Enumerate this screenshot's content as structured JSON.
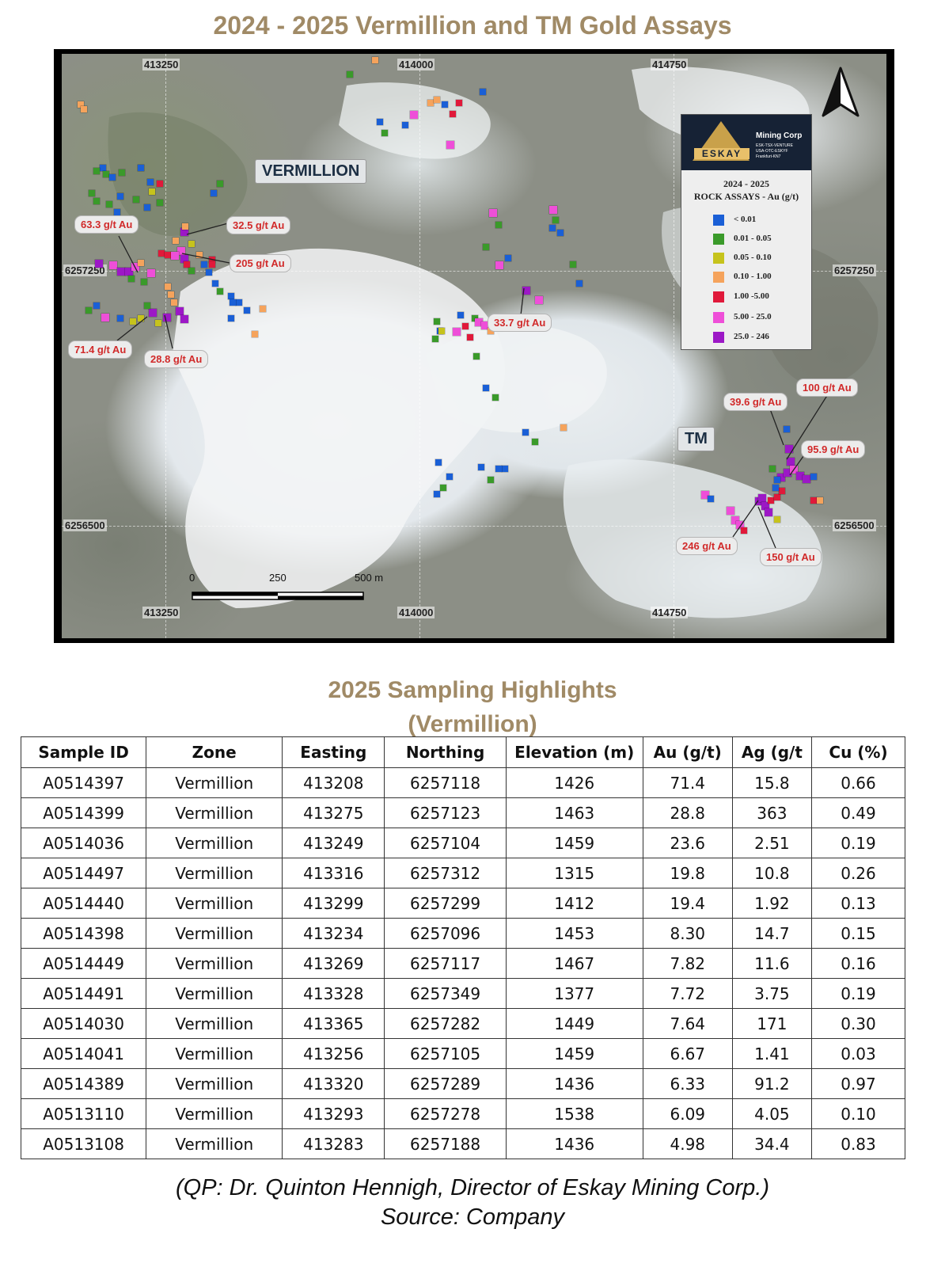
{
  "map": {
    "title": "2024 - 2025 Vermillion and TM Gold Assays",
    "coordinates": {
      "top_left": "413250",
      "top_mid": "414000",
      "top_right": "414750",
      "bottom_left": "413250",
      "bottom_mid": "414000",
      "bottom_right": "414750",
      "left_upper": "6257250",
      "left_lower": "6256500",
      "right_upper": "6257250",
      "right_lower": "6256500"
    },
    "area_labels": {
      "vermillion": "VERMILLION",
      "tm": "TM"
    },
    "callouts": [
      "63.3 g/t Au",
      "32.5 g/t Au",
      "205 g/t Au",
      "71.4 g/t Au",
      "28.8 g/t Au",
      "33.7 g/t Au",
      "39.6 g/t Au",
      "100 g/t Au",
      "95.9 g/t Au",
      "246 g/t Au",
      "150 g/t Au"
    ],
    "scale_bar": {
      "labels": [
        "0",
        "250",
        "500 m"
      ]
    },
    "legend": {
      "logo_word": "ESKAY",
      "logo_company": "Mining Corp",
      "logo_tickers": [
        "ESK-TSX-VENTURE",
        "USA-OTC-ESKYF",
        "Frankfurt-KN7"
      ],
      "title_line1": "2024 - 2025",
      "title_line2": "ROCK ASSAYS  - Au (g/t)",
      "classes": [
        {
          "label": "< 0.01",
          "color": "#1a5fd6"
        },
        {
          "label": "0.01 - 0.05",
          "color": "#3a9a2a"
        },
        {
          "label": "0.05 - 0.10",
          "color": "#c6c31c"
        },
        {
          "label": "0.10 - 1.00",
          "color": "#f5a35c"
        },
        {
          "label": "1.00 -5.00",
          "color": "#e0193a"
        },
        {
          "label": "5.00 - 25.0",
          "color": "#ee4fd8"
        },
        {
          "label": "25.0 - 246",
          "color": "#9c18c6"
        }
      ]
    },
    "north_arrow_icon": "north-arrow-icon"
  },
  "table": {
    "title_line1": "2025 Sampling Highlights",
    "title_line2": "(Vermillion)",
    "headers": [
      "Sample ID",
      "Zone",
      "Easting",
      "Northing",
      "Elevation (m)",
      "Au (g/t)",
      "Ag (g/t",
      "Cu (%)"
    ],
    "rows": [
      [
        "A0514397",
        "Vermillion",
        "413208",
        "6257118",
        "1426",
        "71.4",
        "15.8",
        "0.66"
      ],
      [
        "A0514399",
        "Vermillion",
        "413275",
        "6257123",
        "1463",
        "28.8",
        "363",
        "0.49"
      ],
      [
        "A0514036",
        "Vermillion",
        "413249",
        "6257104",
        "1459",
        "23.6",
        "2.51",
        "0.19"
      ],
      [
        "A0514497",
        "Vermillion",
        "413316",
        "6257312",
        "1315",
        "19.8",
        "10.8",
        "0.26"
      ],
      [
        "A0514440",
        "Vermillion",
        "413299",
        "6257299",
        "1412",
        "19.4",
        "1.92",
        "0.13"
      ],
      [
        "A0514398",
        "Vermillion",
        "413234",
        "6257096",
        "1453",
        "8.30",
        "14.7",
        "0.15"
      ],
      [
        "A0514449",
        "Vermillion",
        "413269",
        "6257117",
        "1467",
        "7.82",
        "11.6",
        "0.16"
      ],
      [
        "A0514491",
        "Vermillion",
        "413328",
        "6257349",
        "1377",
        "7.72",
        "3.75",
        "0.19"
      ],
      [
        "A0514030",
        "Vermillion",
        "413365",
        "6257282",
        "1449",
        "7.64",
        "171",
        "0.30"
      ],
      [
        "A0514041",
        "Vermillion",
        "413256",
        "6257105",
        "1459",
        "6.67",
        "1.41",
        "0.03"
      ],
      [
        "A0514389",
        "Vermillion",
        "413320",
        "6257289",
        "1436",
        "6.33",
        "91.2",
        "0.97"
      ],
      [
        "A0513110",
        "Vermillion",
        "413293",
        "6257278",
        "1538",
        "6.09",
        "4.05",
        "0.10"
      ],
      [
        "A0513108",
        "Vermillion",
        "413283",
        "6257188",
        "1436",
        "4.98",
        "34.4",
        "0.83"
      ]
    ]
  },
  "footer": {
    "line1": "(QP: Dr. Quinton Hennigh, Director of Eskay Mining Corp.)",
    "line2": "Source: Company"
  }
}
